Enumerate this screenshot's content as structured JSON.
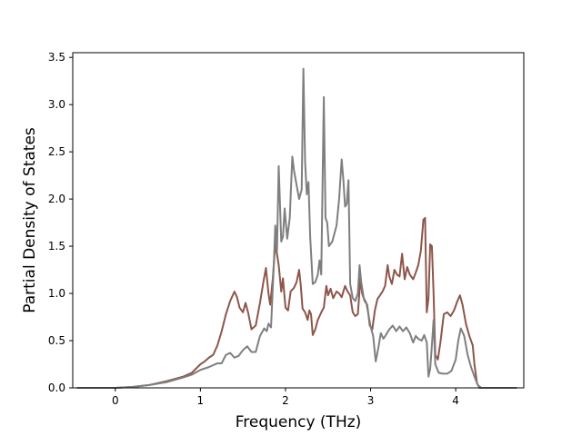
{
  "chart_data": {
    "type": "line",
    "xlabel": "Frequency (THz)",
    "ylabel": "Partial Density of States",
    "xlim": [
      -0.5,
      4.8
    ],
    "ylim": [
      0.0,
      3.55
    ],
    "x_ticks": [
      0,
      1,
      2,
      3,
      4
    ],
    "x_tick_labels": [
      "0",
      "1",
      "2",
      "3",
      "4"
    ],
    "y_ticks": [
      0.0,
      0.5,
      1.0,
      1.5,
      2.0,
      2.5,
      3.0,
      3.5
    ],
    "y_tick_labels": [
      "0.0",
      "0.5",
      "1.0",
      "1.5",
      "2.0",
      "2.5",
      "3.0",
      "3.5"
    ],
    "grid": false,
    "legend": "none",
    "series": [
      {
        "color": "#8c564b",
        "points": [
          [
            -0.45,
            0.0
          ],
          [
            0.0,
            0.0
          ],
          [
            0.2,
            0.01
          ],
          [
            0.4,
            0.03
          ],
          [
            0.6,
            0.07
          ],
          [
            0.8,
            0.12
          ],
          [
            0.9,
            0.16
          ],
          [
            1.0,
            0.25
          ],
          [
            1.05,
            0.28
          ],
          [
            1.1,
            0.32
          ],
          [
            1.15,
            0.35
          ],
          [
            1.2,
            0.45
          ],
          [
            1.25,
            0.6
          ],
          [
            1.3,
            0.78
          ],
          [
            1.35,
            0.92
          ],
          [
            1.38,
            0.98
          ],
          [
            1.4,
            1.02
          ],
          [
            1.43,
            0.96
          ],
          [
            1.46,
            0.85
          ],
          [
            1.5,
            0.8
          ],
          [
            1.53,
            0.9
          ],
          [
            1.56,
            0.8
          ],
          [
            1.6,
            0.62
          ],
          [
            1.65,
            0.66
          ],
          [
            1.7,
            0.9
          ],
          [
            1.74,
            1.12
          ],
          [
            1.77,
            1.27
          ],
          [
            1.8,
            1.0
          ],
          [
            1.82,
            0.88
          ],
          [
            1.85,
            1.15
          ],
          [
            1.88,
            1.52
          ],
          [
            1.9,
            1.42
          ],
          [
            1.92,
            1.3
          ],
          [
            1.95,
            1.02
          ],
          [
            1.97,
            1.16
          ],
          [
            2.0,
            0.85
          ],
          [
            2.03,
            0.82
          ],
          [
            2.06,
            1.02
          ],
          [
            2.1,
            1.06
          ],
          [
            2.13,
            1.12
          ],
          [
            2.16,
            1.25
          ],
          [
            2.18,
            1.08
          ],
          [
            2.2,
            0.84
          ],
          [
            2.23,
            0.8
          ],
          [
            2.26,
            0.72
          ],
          [
            2.28,
            0.82
          ],
          [
            2.3,
            0.78
          ],
          [
            2.32,
            0.56
          ],
          [
            2.35,
            0.62
          ],
          [
            2.38,
            0.72
          ],
          [
            2.42,
            0.8
          ],
          [
            2.45,
            0.85
          ],
          [
            2.48,
            1.08
          ],
          [
            2.5,
            0.98
          ],
          [
            2.53,
            1.05
          ],
          [
            2.56,
            0.95
          ],
          [
            2.6,
            1.02
          ],
          [
            2.63,
            1.0
          ],
          [
            2.66,
            0.96
          ],
          [
            2.7,
            1.08
          ],
          [
            2.73,
            1.02
          ],
          [
            2.76,
            0.98
          ],
          [
            2.79,
            0.8
          ],
          [
            2.82,
            0.76
          ],
          [
            2.85,
            0.78
          ],
          [
            2.88,
            1.16
          ],
          [
            2.9,
            1.0
          ],
          [
            2.93,
            0.92
          ],
          [
            2.96,
            0.88
          ],
          [
            2.99,
            0.66
          ],
          [
            3.02,
            0.62
          ],
          [
            3.05,
            0.82
          ],
          [
            3.08,
            0.94
          ],
          [
            3.11,
            0.98
          ],
          [
            3.14,
            1.02
          ],
          [
            3.17,
            1.08
          ],
          [
            3.2,
            1.3
          ],
          [
            3.22,
            1.18
          ],
          [
            3.25,
            1.1
          ],
          [
            3.28,
            1.25
          ],
          [
            3.31,
            1.2
          ],
          [
            3.34,
            1.18
          ],
          [
            3.37,
            1.42
          ],
          [
            3.4,
            1.15
          ],
          [
            3.43,
            1.28
          ],
          [
            3.46,
            1.2
          ],
          [
            3.5,
            1.15
          ],
          [
            3.53,
            1.22
          ],
          [
            3.56,
            1.3
          ],
          [
            3.59,
            1.45
          ],
          [
            3.62,
            1.78
          ],
          [
            3.64,
            1.8
          ],
          [
            3.66,
            0.8
          ],
          [
            3.68,
            0.95
          ],
          [
            3.7,
            1.52
          ],
          [
            3.72,
            1.5
          ],
          [
            3.74,
            1.0
          ],
          [
            3.76,
            0.35
          ],
          [
            3.79,
            0.3
          ],
          [
            3.82,
            0.48
          ],
          [
            3.86,
            0.78
          ],
          [
            3.9,
            0.8
          ],
          [
            3.94,
            0.76
          ],
          [
            3.98,
            0.82
          ],
          [
            4.02,
            0.92
          ],
          [
            4.05,
            0.98
          ],
          [
            4.08,
            0.88
          ],
          [
            4.12,
            0.68
          ],
          [
            4.16,
            0.55
          ],
          [
            4.2,
            0.45
          ],
          [
            4.22,
            0.25
          ],
          [
            4.25,
            0.05
          ],
          [
            4.28,
            0.0
          ],
          [
            4.72,
            0.0
          ]
        ]
      },
      {
        "color": "#7f7f7f",
        "points": [
          [
            -0.45,
            0.0
          ],
          [
            0.0,
            0.0
          ],
          [
            0.2,
            0.01
          ],
          [
            0.4,
            0.03
          ],
          [
            0.6,
            0.06
          ],
          [
            0.8,
            0.11
          ],
          [
            0.9,
            0.14
          ],
          [
            1.0,
            0.19
          ],
          [
            1.1,
            0.22
          ],
          [
            1.2,
            0.26
          ],
          [
            1.25,
            0.26
          ],
          [
            1.3,
            0.35
          ],
          [
            1.35,
            0.37
          ],
          [
            1.4,
            0.32
          ],
          [
            1.45,
            0.34
          ],
          [
            1.5,
            0.4
          ],
          [
            1.55,
            0.44
          ],
          [
            1.6,
            0.38
          ],
          [
            1.65,
            0.38
          ],
          [
            1.7,
            0.55
          ],
          [
            1.75,
            0.63
          ],
          [
            1.78,
            0.6
          ],
          [
            1.8,
            0.68
          ],
          [
            1.83,
            0.64
          ],
          [
            1.86,
            1.25
          ],
          [
            1.88,
            1.72
          ],
          [
            1.9,
            1.45
          ],
          [
            1.92,
            2.35
          ],
          [
            1.95,
            1.55
          ],
          [
            1.97,
            1.6
          ],
          [
            1.99,
            1.9
          ],
          [
            2.02,
            1.58
          ],
          [
            2.05,
            1.8
          ],
          [
            2.08,
            2.45
          ],
          [
            2.1,
            2.3
          ],
          [
            2.13,
            2.15
          ],
          [
            2.16,
            2.0
          ],
          [
            2.19,
            2.1
          ],
          [
            2.21,
            3.38
          ],
          [
            2.23,
            2.4
          ],
          [
            2.25,
            2.05
          ],
          [
            2.27,
            2.18
          ],
          [
            2.29,
            1.6
          ],
          [
            2.32,
            1.1
          ],
          [
            2.35,
            1.12
          ],
          [
            2.38,
            1.2
          ],
          [
            2.4,
            1.35
          ],
          [
            2.42,
            1.2
          ],
          [
            2.45,
            3.08
          ],
          [
            2.47,
            1.8
          ],
          [
            2.49,
            1.75
          ],
          [
            2.51,
            1.5
          ],
          [
            2.55,
            1.55
          ],
          [
            2.6,
            1.72
          ],
          [
            2.63,
            2.0
          ],
          [
            2.66,
            2.42
          ],
          [
            2.68,
            2.2
          ],
          [
            2.7,
            1.92
          ],
          [
            2.72,
            1.95
          ],
          [
            2.74,
            2.2
          ],
          [
            2.76,
            1.1
          ],
          [
            2.79,
            0.95
          ],
          [
            2.82,
            0.92
          ],
          [
            2.85,
            1.0
          ],
          [
            2.87,
            1.3
          ],
          [
            2.89,
            1.12
          ],
          [
            2.92,
            0.95
          ],
          [
            2.95,
            0.9
          ],
          [
            2.98,
            0.75
          ],
          [
            3.0,
            0.65
          ],
          [
            3.03,
            0.55
          ],
          [
            3.06,
            0.28
          ],
          [
            3.09,
            0.42
          ],
          [
            3.12,
            0.58
          ],
          [
            3.15,
            0.52
          ],
          [
            3.18,
            0.56
          ],
          [
            3.22,
            0.62
          ],
          [
            3.26,
            0.66
          ],
          [
            3.3,
            0.6
          ],
          [
            3.34,
            0.65
          ],
          [
            3.38,
            0.6
          ],
          [
            3.42,
            0.64
          ],
          [
            3.46,
            0.58
          ],
          [
            3.5,
            0.48
          ],
          [
            3.53,
            0.55
          ],
          [
            3.56,
            0.52
          ],
          [
            3.6,
            0.5
          ],
          [
            3.63,
            0.56
          ],
          [
            3.66,
            0.48
          ],
          [
            3.68,
            0.12
          ],
          [
            3.7,
            0.2
          ],
          [
            3.72,
            0.45
          ],
          [
            3.74,
            0.72
          ],
          [
            3.76,
            0.25
          ],
          [
            3.8,
            0.16
          ],
          [
            3.85,
            0.15
          ],
          [
            3.9,
            0.15
          ],
          [
            3.95,
            0.18
          ],
          [
            4.0,
            0.3
          ],
          [
            4.03,
            0.5
          ],
          [
            4.06,
            0.63
          ],
          [
            4.1,
            0.55
          ],
          [
            4.14,
            0.35
          ],
          [
            4.18,
            0.22
          ],
          [
            4.22,
            0.12
          ],
          [
            4.26,
            0.03
          ],
          [
            4.3,
            0.0
          ],
          [
            4.72,
            0.0
          ]
        ]
      }
    ]
  }
}
